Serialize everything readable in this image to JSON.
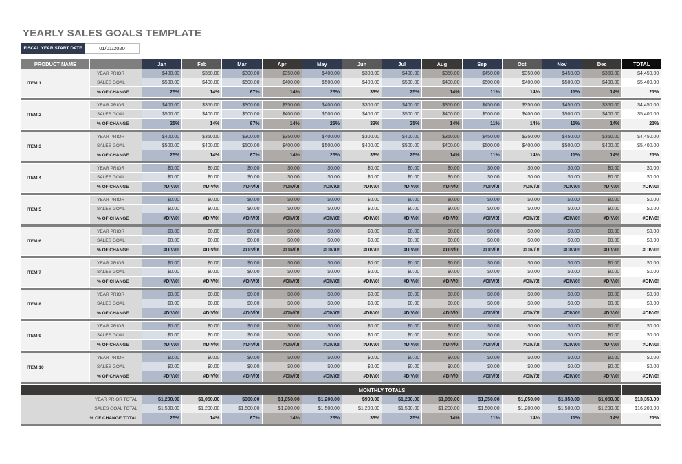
{
  "title": "YEARLY SALES GOALS TEMPLATE",
  "fiscal_year": {
    "label": "FISCAL YEAR START DATE",
    "value": "01/01/2020"
  },
  "header": {
    "product_name": "PRODUCT NAME",
    "months": [
      "Jan",
      "Feb",
      "Mar",
      "Apr",
      "May",
      "Jun",
      "Jul",
      "Aug",
      "Sep",
      "Oct",
      "Nov",
      "Dec"
    ],
    "total": "TOTAL"
  },
  "row_labels": {
    "year_prior": "YEAR PRIOR",
    "sales_goal": "SALES GOAL",
    "pct": "% OF CHANGE"
  },
  "items": [
    {
      "name": "ITEM 1",
      "year_prior": [
        "$400.00",
        "$350.00",
        "$300.00",
        "$350.00",
        "$400.00",
        "$300.00",
        "$400.00",
        "$350.00",
        "$450.00",
        "$350.00",
        "$450.00",
        "$350.00",
        "$4,450.00"
      ],
      "sales_goal": [
        "$500.00",
        "$400.00",
        "$500.00",
        "$400.00",
        "$500.00",
        "$400.00",
        "$500.00",
        "$400.00",
        "$500.00",
        "$400.00",
        "$500.00",
        "$400.00",
        "$5,400.00"
      ],
      "pct": [
        "25%",
        "14%",
        "67%",
        "14%",
        "25%",
        "33%",
        "25%",
        "14%",
        "11%",
        "14%",
        "11%",
        "14%",
        "21%"
      ]
    },
    {
      "name": "ITEM 2",
      "year_prior": [
        "$400.00",
        "$350.00",
        "$300.00",
        "$350.00",
        "$400.00",
        "$300.00",
        "$400.00",
        "$350.00",
        "$450.00",
        "$350.00",
        "$450.00",
        "$350.00",
        "$4,450.00"
      ],
      "sales_goal": [
        "$500.00",
        "$400.00",
        "$500.00",
        "$400.00",
        "$500.00",
        "$400.00",
        "$500.00",
        "$400.00",
        "$500.00",
        "$400.00",
        "$500.00",
        "$400.00",
        "$5,400.00"
      ],
      "pct": [
        "25%",
        "14%",
        "67%",
        "14%",
        "25%",
        "33%",
        "25%",
        "14%",
        "11%",
        "14%",
        "11%",
        "14%",
        "21%"
      ]
    },
    {
      "name": "ITEM 3",
      "year_prior": [
        "$400.00",
        "$350.00",
        "$300.00",
        "$350.00",
        "$400.00",
        "$300.00",
        "$400.00",
        "$350.00",
        "$450.00",
        "$350.00",
        "$450.00",
        "$350.00",
        "$4,450.00"
      ],
      "sales_goal": [
        "$500.00",
        "$400.00",
        "$500.00",
        "$400.00",
        "$500.00",
        "$400.00",
        "$500.00",
        "$400.00",
        "$500.00",
        "$400.00",
        "$500.00",
        "$400.00",
        "$5,400.00"
      ],
      "pct": [
        "25%",
        "14%",
        "67%",
        "14%",
        "25%",
        "33%",
        "25%",
        "14%",
        "11%",
        "14%",
        "11%",
        "14%",
        "21%"
      ]
    },
    {
      "name": "ITEM 4",
      "year_prior": [
        "$0.00",
        "$0.00",
        "$0.00",
        "$0.00",
        "$0.00",
        "$0.00",
        "$0.00",
        "$0.00",
        "$0.00",
        "$0.00",
        "$0.00",
        "$0.00",
        "$0.00"
      ],
      "sales_goal": [
        "$0.00",
        "$0.00",
        "$0.00",
        "$0.00",
        "$0.00",
        "$0.00",
        "$0.00",
        "$0.00",
        "$0.00",
        "$0.00",
        "$0.00",
        "$0.00",
        "$0.00"
      ],
      "pct": [
        "#DIV/0!",
        "#DIV/0!",
        "#DIV/0!",
        "#DIV/0!",
        "#DIV/0!",
        "#DIV/0!",
        "#DIV/0!",
        "#DIV/0!",
        "#DIV/0!",
        "#DIV/0!",
        "#DIV/0!",
        "#DIV/0!",
        "#DIV/0!"
      ]
    },
    {
      "name": "ITEM 5",
      "year_prior": [
        "$0.00",
        "$0.00",
        "$0.00",
        "$0.00",
        "$0.00",
        "$0.00",
        "$0.00",
        "$0.00",
        "$0.00",
        "$0.00",
        "$0.00",
        "$0.00",
        "$0.00"
      ],
      "sales_goal": [
        "$0.00",
        "$0.00",
        "$0.00",
        "$0.00",
        "$0.00",
        "$0.00",
        "$0.00",
        "$0.00",
        "$0.00",
        "$0.00",
        "$0.00",
        "$0.00",
        "$0.00"
      ],
      "pct": [
        "#DIV/0!",
        "#DIV/0!",
        "#DIV/0!",
        "#DIV/0!",
        "#DIV/0!",
        "#DIV/0!",
        "#DIV/0!",
        "#DIV/0!",
        "#DIV/0!",
        "#DIV/0!",
        "#DIV/0!",
        "#DIV/0!",
        "#DIV/0!"
      ]
    },
    {
      "name": "ITEM 6",
      "year_prior": [
        "$0.00",
        "$0.00",
        "$0.00",
        "$0.00",
        "$0.00",
        "$0.00",
        "$0.00",
        "$0.00",
        "$0.00",
        "$0.00",
        "$0.00",
        "$0.00",
        "$0.00"
      ],
      "sales_goal": [
        "$0.00",
        "$0.00",
        "$0.00",
        "$0.00",
        "$0.00",
        "$0.00",
        "$0.00",
        "$0.00",
        "$0.00",
        "$0.00",
        "$0.00",
        "$0.00",
        "$0.00"
      ],
      "pct": [
        "#DIV/0!",
        "#DIV/0!",
        "#DIV/0!",
        "#DIV/0!",
        "#DIV/0!",
        "#DIV/0!",
        "#DIV/0!",
        "#DIV/0!",
        "#DIV/0!",
        "#DIV/0!",
        "#DIV/0!",
        "#DIV/0!",
        "#DIV/0!"
      ]
    },
    {
      "name": "ITEM 7",
      "year_prior": [
        "$0.00",
        "$0.00",
        "$0.00",
        "$0.00",
        "$0.00",
        "$0.00",
        "$0.00",
        "$0.00",
        "$0.00",
        "$0.00",
        "$0.00",
        "$0.00",
        "$0.00"
      ],
      "sales_goal": [
        "$0.00",
        "$0.00",
        "$0.00",
        "$0.00",
        "$0.00",
        "$0.00",
        "$0.00",
        "$0.00",
        "$0.00",
        "$0.00",
        "$0.00",
        "$0.00",
        "$0.00"
      ],
      "pct": [
        "#DIV/0!",
        "#DIV/0!",
        "#DIV/0!",
        "#DIV/0!",
        "#DIV/0!",
        "#DIV/0!",
        "#DIV/0!",
        "#DIV/0!",
        "#DIV/0!",
        "#DIV/0!",
        "#DIV/0!",
        "#DIV/0!",
        "#DIV/0!"
      ]
    },
    {
      "name": "ITEM 8",
      "year_prior": [
        "$0.00",
        "$0.00",
        "$0.00",
        "$0.00",
        "$0.00",
        "$0.00",
        "$0.00",
        "$0.00",
        "$0.00",
        "$0.00",
        "$0.00",
        "$0.00",
        "$0.00"
      ],
      "sales_goal": [
        "$0.00",
        "$0.00",
        "$0.00",
        "$0.00",
        "$0.00",
        "$0.00",
        "$0.00",
        "$0.00",
        "$0.00",
        "$0.00",
        "$0.00",
        "$0.00",
        "$0.00"
      ],
      "pct": [
        "#DIV/0!",
        "#DIV/0!",
        "#DIV/0!",
        "#DIV/0!",
        "#DIV/0!",
        "#DIV/0!",
        "#DIV/0!",
        "#DIV/0!",
        "#DIV/0!",
        "#DIV/0!",
        "#DIV/0!",
        "#DIV/0!",
        "#DIV/0!"
      ]
    },
    {
      "name": "ITEM 9",
      "year_prior": [
        "$0.00",
        "$0.00",
        "$0.00",
        "$0.00",
        "$0.00",
        "$0.00",
        "$0.00",
        "$0.00",
        "$0.00",
        "$0.00",
        "$0.00",
        "$0.00",
        "$0.00"
      ],
      "sales_goal": [
        "$0.00",
        "$0.00",
        "$0.00",
        "$0.00",
        "$0.00",
        "$0.00",
        "$0.00",
        "$0.00",
        "$0.00",
        "$0.00",
        "$0.00",
        "$0.00",
        "$0.00"
      ],
      "pct": [
        "#DIV/0!",
        "#DIV/0!",
        "#DIV/0!",
        "#DIV/0!",
        "#DIV/0!",
        "#DIV/0!",
        "#DIV/0!",
        "#DIV/0!",
        "#DIV/0!",
        "#DIV/0!",
        "#DIV/0!",
        "#DIV/0!",
        "#DIV/0!"
      ]
    },
    {
      "name": "ITEM 10",
      "year_prior": [
        "$0.00",
        "$0.00",
        "$0.00",
        "$0.00",
        "$0.00",
        "$0.00",
        "$0.00",
        "$0.00",
        "$0.00",
        "$0.00",
        "$0.00",
        "$0.00",
        "$0.00"
      ],
      "sales_goal": [
        "$0.00",
        "$0.00",
        "$0.00",
        "$0.00",
        "$0.00",
        "$0.00",
        "$0.00",
        "$0.00",
        "$0.00",
        "$0.00",
        "$0.00",
        "$0.00",
        "$0.00"
      ],
      "pct": [
        "#DIV/0!",
        "#DIV/0!",
        "#DIV/0!",
        "#DIV/0!",
        "#DIV/0!",
        "#DIV/0!",
        "#DIV/0!",
        "#DIV/0!",
        "#DIV/0!",
        "#DIV/0!",
        "#DIV/0!",
        "#DIV/0!",
        "#DIV/0!"
      ]
    }
  ],
  "monthly_totals": {
    "label": "MONTHLY TOTALS",
    "year_prior_label": "YEAR PRIOR TOTAL",
    "year_prior": [
      "$1,200.00",
      "$1,050.00",
      "$900.00",
      "$1,050.00",
      "$1,200.00",
      "$900.00",
      "$1,200.00",
      "$1,050.00",
      "$1,350.00",
      "$1,050.00",
      "$1,350.00",
      "$1,050.00",
      "$13,350.00"
    ],
    "sales_goal_label": "SALES GOAL TOTAL",
    "sales_goal": [
      "$1,500.00",
      "$1,200.00",
      "$1,500.00",
      "$1,200.00",
      "$1,500.00",
      "$1,200.00",
      "$1,500.00",
      "$1,200.00",
      "$1,500.00",
      "$1,200.00",
      "$1,500.00",
      "$1,200.00",
      "$16,200.00"
    ],
    "pct_label": "% OF CHANGE TOTAL",
    "pct": [
      "25%",
      "14%",
      "67%",
      "14%",
      "25%",
      "33%",
      "25%",
      "14%",
      "11%",
      "14%",
      "11%",
      "14%",
      "21%"
    ]
  },
  "colors": {
    "navy": "#2f3a4f",
    "gray": "#5a5a5a",
    "dark": "#3b3838",
    "total": "#0d0d0d"
  }
}
